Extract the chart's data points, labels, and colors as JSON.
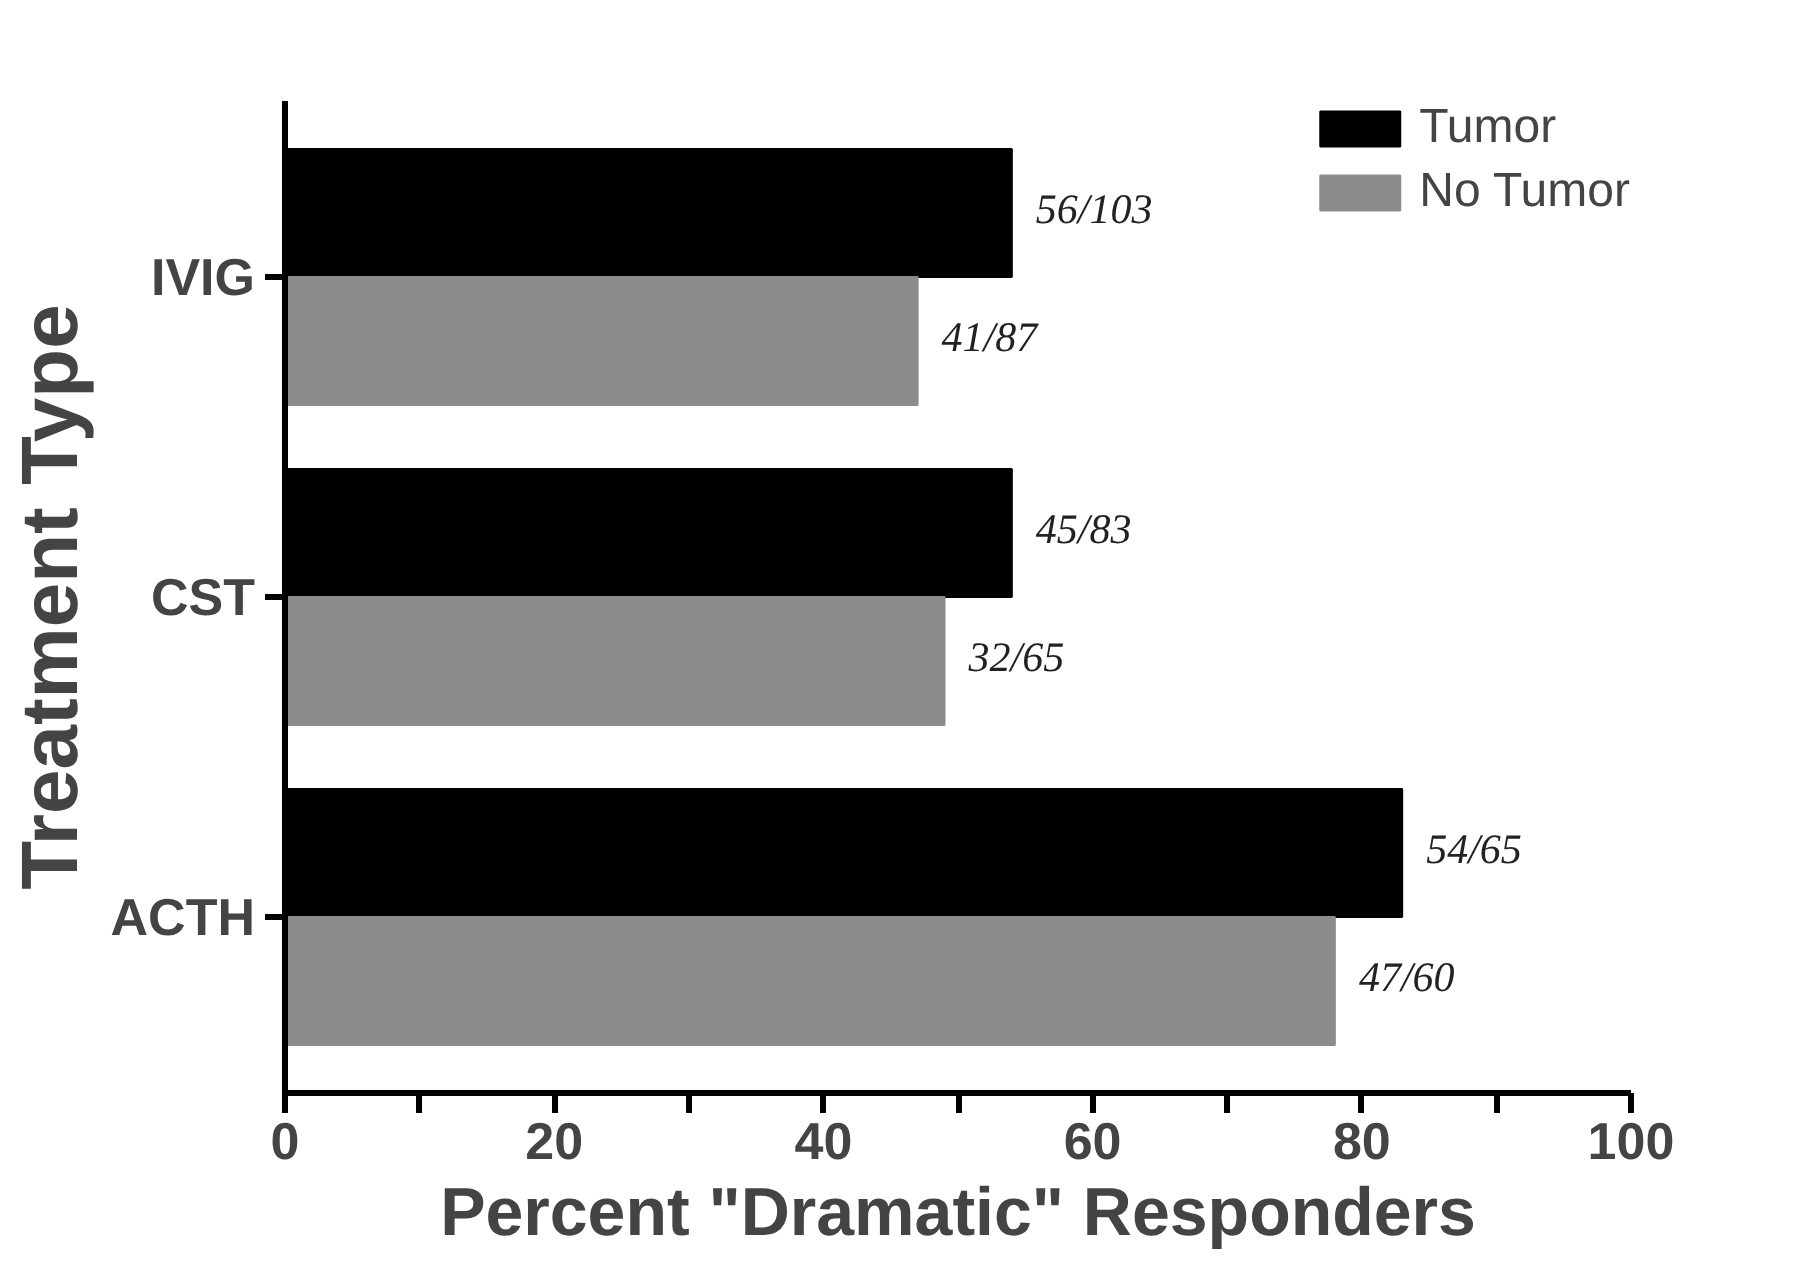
{
  "chart_data": {
    "type": "bar",
    "orientation": "horizontal",
    "categories": [
      "IVIG",
      "CST",
      "ACTH"
    ],
    "xlabel": "Percent \"Dramatic\" Responders",
    "ylabel": "Treatment Type",
    "xlim": [
      0,
      100
    ],
    "xticks": [
      0,
      {
        "value": 10,
        "label": null
      },
      20,
      {
        "value": 30,
        "label": null
      },
      40,
      {
        "value": 50,
        "label": null
      },
      60,
      {
        "value": 70,
        "label": null
      },
      80,
      {
        "value": 90,
        "label": null
      },
      100
    ],
    "series": [
      {
        "name": "Tumor",
        "color": "#000000",
        "values": [
          54,
          54,
          83
        ],
        "value_labels": [
          "56/103",
          "45/83",
          "54/65"
        ]
      },
      {
        "name": "No Tumor",
        "color": "#8c8c8c",
        "values": [
          47,
          49,
          78
        ],
        "value_labels": [
          "41/87",
          "32/65",
          "47/60"
        ]
      }
    ],
    "legend": "top right",
    "grid": false
  }
}
